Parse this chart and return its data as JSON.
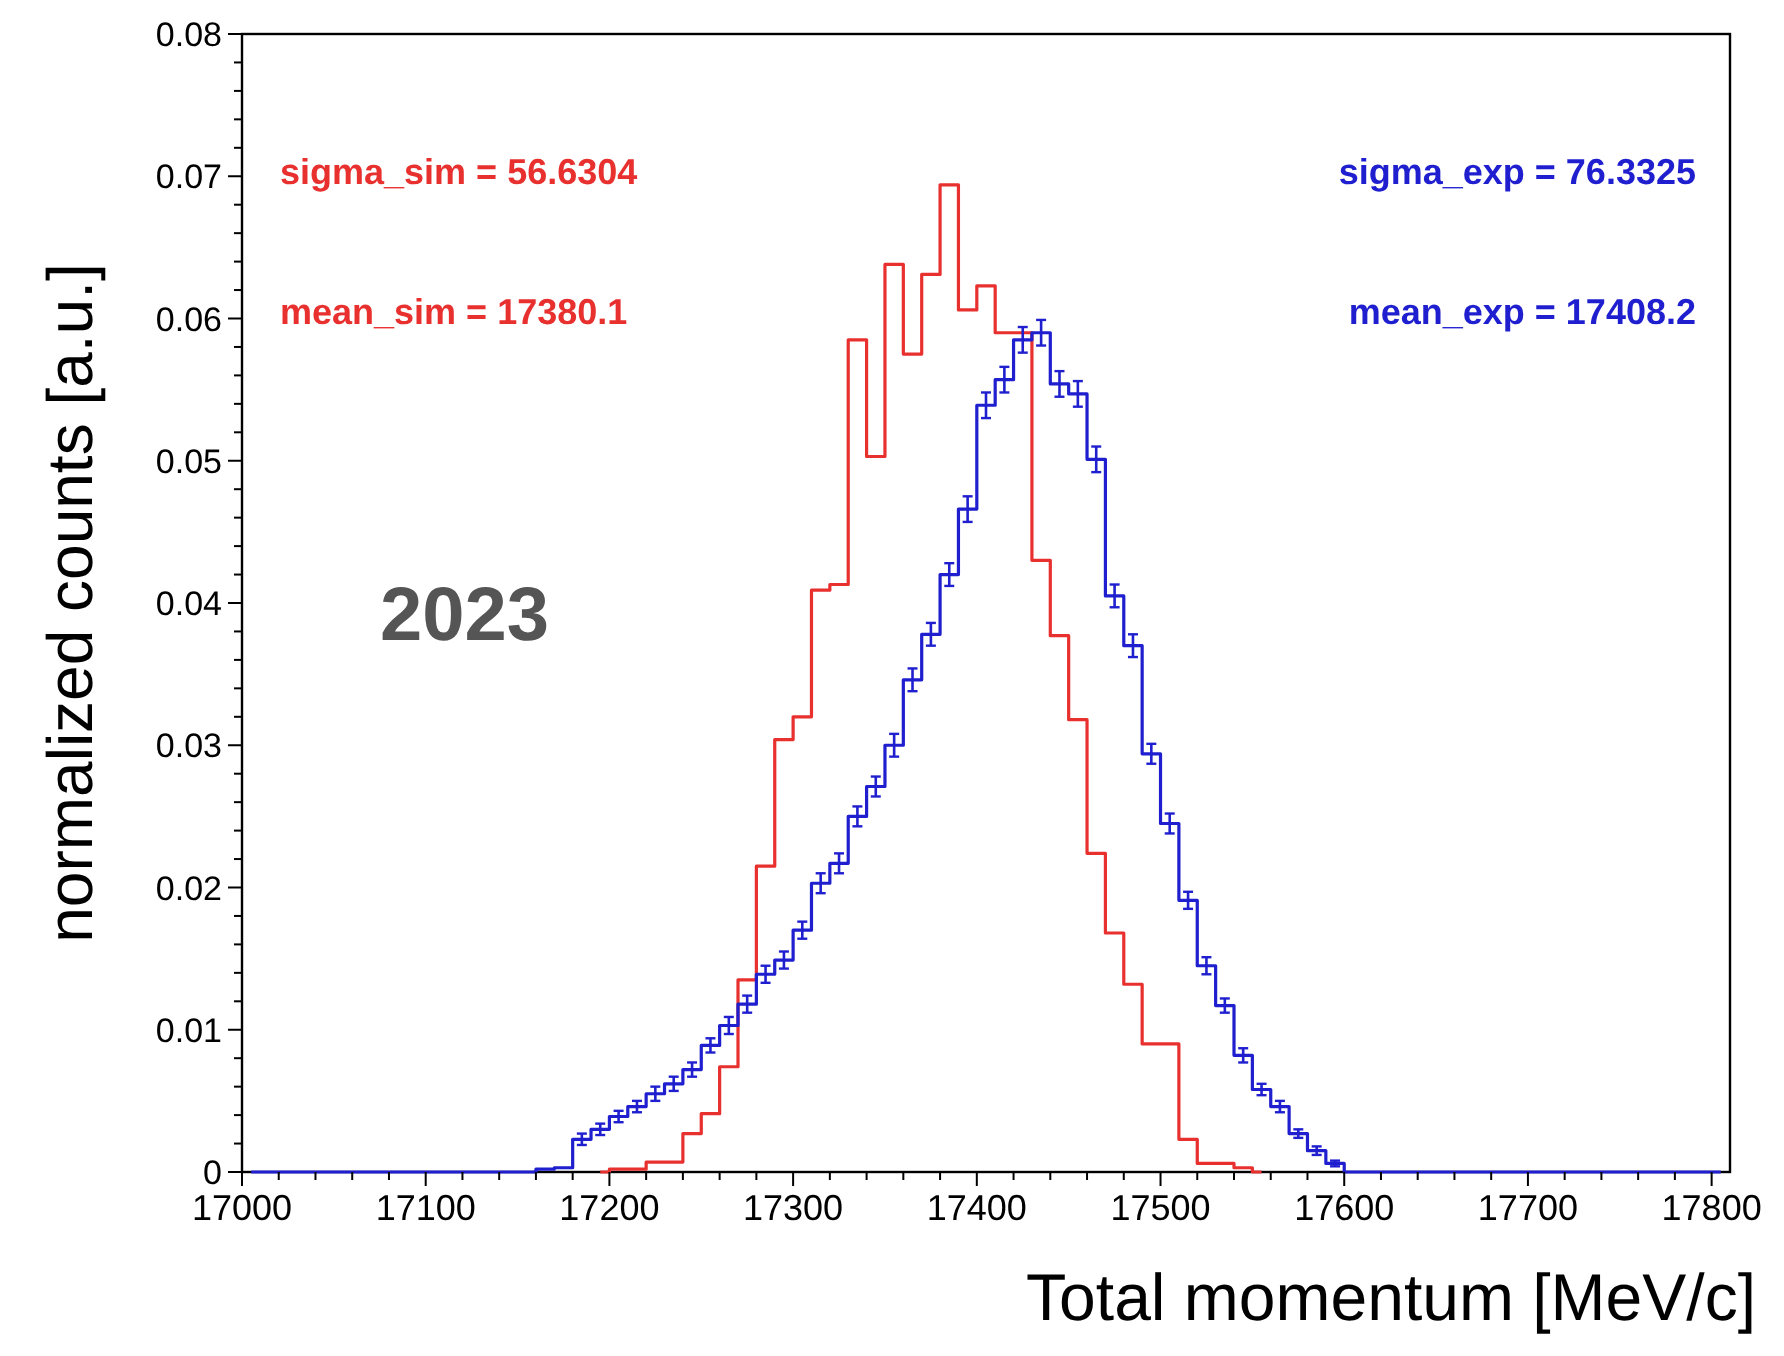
{
  "chart_data": {
    "type": "step",
    "x": [
      17005,
      17015,
      17025,
      17035,
      17045,
      17055,
      17065,
      17075,
      17085,
      17095,
      17105,
      17115,
      17125,
      17135,
      17145,
      17155,
      17165,
      17175,
      17185,
      17195,
      17205,
      17215,
      17225,
      17235,
      17245,
      17255,
      17265,
      17275,
      17285,
      17295,
      17305,
      17315,
      17325,
      17335,
      17345,
      17355,
      17365,
      17375,
      17385,
      17395,
      17405,
      17415,
      17425,
      17435,
      17445,
      17455,
      17465,
      17475,
      17485,
      17495,
      17505,
      17515,
      17525,
      17535,
      17545,
      17555,
      17565,
      17575,
      17585,
      17595,
      17605,
      17615,
      17625,
      17635,
      17645,
      17655,
      17665,
      17675,
      17685,
      17695,
      17705,
      17715,
      17725,
      17735,
      17745,
      17755,
      17765,
      17775,
      17785,
      17795,
      17805
    ],
    "xlabel": "Total momentum [MeV/c]",
    "ylabel": "normalized counts [a.u.]",
    "annotations": [
      "sigma_sim = 56.6304",
      "mean_sim = 17380.1",
      "sigma_exp = 76.3325",
      "mean_exp = 17408.2",
      "2023"
    ],
    "series": [
      {
        "color": "#e8302f",
        "values": [
          null,
          null,
          null,
          null,
          null,
          null,
          null,
          null,
          null,
          null,
          null,
          null,
          null,
          null,
          null,
          null,
          null,
          null,
          null,
          0,
          0.0002,
          0.0002,
          0.0007,
          0.0007,
          0.0027,
          0.0041,
          0.0074,
          0.0135,
          0.0215,
          0.0304,
          0.032,
          0.0409,
          0.0413,
          0.0585,
          0.0503,
          0.0638,
          0.0575,
          0.0631,
          0.0694,
          0.0606,
          0.0623,
          0.059,
          0.059,
          0.043,
          0.0377,
          0.0318,
          0.0224,
          0.0168,
          0.0132,
          0.009,
          0.009,
          0.0023,
          0.0006,
          0.0006,
          0.0003,
          0,
          null,
          null,
          null,
          null,
          null,
          null,
          null,
          null,
          null,
          null,
          null,
          null,
          null,
          null,
          null,
          null,
          null,
          null,
          null,
          null,
          null,
          null,
          null,
          null,
          null
        ]
      },
      {
        "color": "#1f1fcf",
        "values": [
          0,
          0,
          0,
          0,
          0,
          0,
          0,
          0,
          0,
          0,
          0,
          0,
          0,
          0,
          0,
          0,
          0.0002,
          0.0003,
          0.0023,
          0.003,
          0.0039,
          0.0046,
          0.0055,
          0.0062,
          0.0072,
          0.0089,
          0.0103,
          0.0118,
          0.0139,
          0.0149,
          0.017,
          0.0203,
          0.0217,
          0.025,
          0.0271,
          0.03,
          0.0346,
          0.0378,
          0.042,
          0.0466,
          0.0539,
          0.0557,
          0.0585,
          0.059,
          0.0554,
          0.0547,
          0.0501,
          0.0405,
          0.037,
          0.0294,
          0.0245,
          0.0191,
          0.0145,
          0.0117,
          0.0082,
          0.0058,
          0.0046,
          0.0027,
          0.0015,
          0.0006,
          0,
          0,
          0,
          0,
          0,
          0,
          0,
          0,
          0,
          0,
          0,
          0,
          0,
          0,
          0,
          0,
          0,
          0,
          0,
          0,
          0
        ],
        "errors": [
          null,
          null,
          null,
          null,
          null,
          null,
          null,
          null,
          null,
          null,
          null,
          null,
          null,
          null,
          null,
          null,
          null,
          null,
          0.0004,
          0.0004,
          0.0004,
          0.0004,
          0.0005,
          0.0005,
          0.0005,
          0.0005,
          0.0006,
          0.0006,
          0.0006,
          0.0006,
          0.0006,
          0.0007,
          0.0007,
          0.0007,
          0.0007,
          0.0008,
          0.0008,
          0.0008,
          0.0008,
          0.0009,
          0.0009,
          0.0009,
          0.0009,
          0.0009,
          0.0009,
          0.0009,
          0.0009,
          0.0008,
          0.0008,
          0.0007,
          0.0007,
          0.0006,
          0.0006,
          0.0005,
          0.0005,
          0.0004,
          0.0004,
          0.0003,
          0.0003,
          0.0002,
          null,
          null,
          null,
          null,
          null,
          null,
          null,
          null,
          null,
          null,
          null,
          null,
          null,
          null,
          null,
          null,
          null,
          null,
          null,
          null,
          null
        ]
      }
    ],
    "xlim": [
      17000,
      17810
    ],
    "xticks": [
      17000,
      {
        "value": 17020,
        "label": null
      },
      {
        "value": 17040,
        "label": null
      },
      {
        "value": 17060,
        "label": null
      },
      {
        "value": 17080,
        "label": null
      },
      17100,
      {
        "value": 17120,
        "label": null
      },
      {
        "value": 17140,
        "label": null
      },
      {
        "value": 17160,
        "label": null
      },
      {
        "value": 17180,
        "label": null
      },
      17200,
      {
        "value": 17220,
        "label": null
      },
      {
        "value": 17240,
        "label": null
      },
      {
        "value": 17260,
        "label": null
      },
      {
        "value": 17280,
        "label": null
      },
      17300,
      {
        "value": 17320,
        "label": null
      },
      {
        "value": 17340,
        "label": null
      },
      {
        "value": 17360,
        "label": null
      },
      {
        "value": 17380,
        "label": null
      },
      17400,
      {
        "value": 17420,
        "label": null
      },
      {
        "value": 17440,
        "label": null
      },
      {
        "value": 17460,
        "label": null
      },
      {
        "value": 17480,
        "label": null
      },
      17500,
      {
        "value": 17520,
        "label": null
      },
      {
        "value": 17540,
        "label": null
      },
      {
        "value": 17560,
        "label": null
      },
      {
        "value": 17580,
        "label": null
      },
      17600,
      {
        "value": 17620,
        "label": null
      },
      {
        "value": 17640,
        "label": null
      },
      {
        "value": 17660,
        "label": null
      },
      {
        "value": 17680,
        "label": null
      },
      17700,
      {
        "value": 17720,
        "label": null
      },
      {
        "value": 17740,
        "label": null
      },
      {
        "value": 17760,
        "label": null
      },
      {
        "value": 17780,
        "label": null
      },
      17800
    ],
    "ylim": [
      0,
      0.08
    ],
    "yticks": [
      0,
      {
        "value": 0.002,
        "label": null
      },
      {
        "value": 0.004,
        "label": null
      },
      {
        "value": 0.006,
        "label": null
      },
      {
        "value": 0.008,
        "label": null
      },
      0.01,
      {
        "value": 0.012,
        "label": null
      },
      {
        "value": 0.014,
        "label": null
      },
      {
        "value": 0.016,
        "label": null
      },
      {
        "value": 0.018,
        "label": null
      },
      0.02,
      {
        "value": 0.022,
        "label": null
      },
      {
        "value": 0.024,
        "label": null
      },
      {
        "value": 0.026,
        "label": null
      },
      {
        "value": 0.028,
        "label": null
      },
      0.03,
      {
        "value": 0.032,
        "label": null
      },
      {
        "value": 0.034,
        "label": null
      },
      {
        "value": 0.036,
        "label": null
      },
      {
        "value": 0.038,
        "label": null
      },
      0.04,
      {
        "value": 0.042,
        "label": null
      },
      {
        "value": 0.044,
        "label": null
      },
      {
        "value": 0.046,
        "label": null
      },
      {
        "value": 0.048,
        "label": null
      },
      0.05,
      {
        "value": 0.052,
        "label": null
      },
      {
        "value": 0.054,
        "label": null
      },
      {
        "value": 0.056,
        "label": null
      },
      {
        "value": 0.058,
        "label": null
      },
      0.06,
      {
        "value": 0.062,
        "label": null
      },
      {
        "value": 0.064,
        "label": null
      },
      {
        "value": 0.066,
        "label": null
      },
      {
        "value": 0.068,
        "label": null
      },
      0.07,
      {
        "value": 0.072,
        "label": null
      },
      {
        "value": 0.074,
        "label": null
      },
      {
        "value": 0.076,
        "label": null
      },
      {
        "value": 0.078,
        "label": null
      },
      0.08
    ]
  }
}
